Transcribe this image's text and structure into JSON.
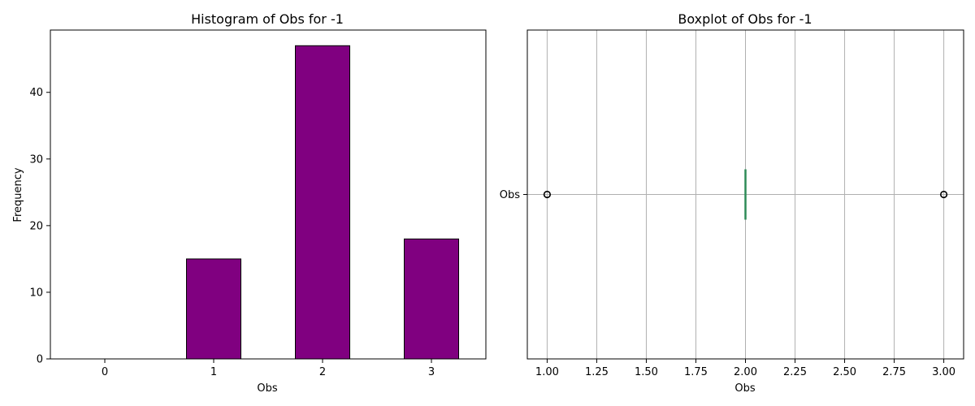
{
  "chart_data": [
    {
      "type": "bar",
      "title": "Histogram of Obs for -1",
      "xlabel": "Obs",
      "ylabel": "Frequency",
      "categories": [
        "0",
        "1",
        "2",
        "3"
      ],
      "values": [
        0,
        15,
        47,
        18
      ],
      "ylim": [
        0,
        49.35
      ],
      "yticks": [
        0,
        10,
        20,
        30,
        40
      ],
      "grid": false,
      "colors": {
        "bar": "#800080",
        "edge": "#000000"
      }
    },
    {
      "type": "boxplot",
      "title": "Boxplot of Obs for -1",
      "xlabel": "Obs",
      "category": "Obs",
      "xlim": [
        0.9,
        3.1
      ],
      "xticks": [
        "1.00",
        "1.25",
        "1.50",
        "1.75",
        "2.00",
        "2.25",
        "2.50",
        "2.75",
        "3.00"
      ],
      "stats": {
        "q1": 2.0,
        "median": 2.0,
        "q3": 2.0,
        "whisker_low": 2.0,
        "whisker_high": 2.0
      },
      "outliers": [
        1.0,
        3.0
      ],
      "grid": true,
      "colors": {
        "median": "#2e8b57",
        "grid": "#b0b0b0",
        "outlier_edge": "#000000"
      }
    }
  ]
}
